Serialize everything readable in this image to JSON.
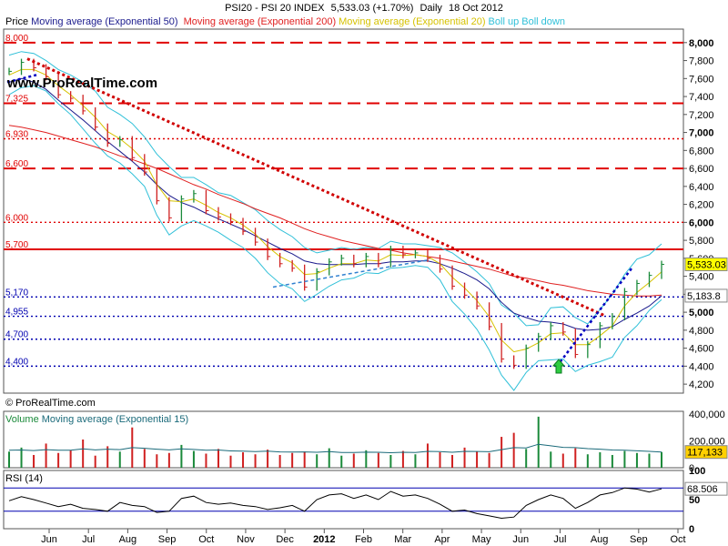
{
  "header": {
    "symbol": "PSI20 - PSI 20 INDEX",
    "quote": "5,533.03 (+1.70%)",
    "period": "Daily",
    "date": "18 Oct 2012"
  },
  "legend": {
    "price": "Price",
    "ema50": "Moving average (Exponential 50)",
    "ema200": "Moving average (Exponential 200)",
    "ema20": "Moving average (Exponential 20)",
    "boll": "Boll up Boll down"
  },
  "watermarks": {
    "main": "www.ProRealTime.com",
    "copyright": "© ProRealTime.com"
  },
  "volume_panel": {
    "label_volume": "Volume",
    "label_ma": "Moving average (Exponential 15)",
    "last_value": "117,133"
  },
  "rsi_panel": {
    "label": "RSI (14)",
    "last_value": "68.506"
  },
  "price_badges": {
    "last": "5,533.03",
    "ema": "5,183.8"
  },
  "colors": {
    "ema50": "#1a1a8c",
    "ema200": "#e02020",
    "ema20": "#d6c200",
    "boll": "#30c0d8",
    "up": "#1a8a3a",
    "down": "#d02020",
    "resistance": "#e00000",
    "support": "#0000b0"
  },
  "chart_data": [
    {
      "type": "line",
      "title": "PSI20 - PSI 20 INDEX",
      "x_ticks": [
        "Jun",
        "Jul",
        "Aug",
        "Sep",
        "Oct",
        "Nov",
        "Dec",
        "2012",
        "Feb",
        "Mar",
        "Apr",
        "May",
        "Jun",
        "Jul",
        "Aug",
        "Sep",
        "Oct"
      ],
      "y_ticks": [
        "8,000",
        "7,800",
        "7,600",
        "7,400",
        "7,200",
        "7,000",
        "6,800",
        "6,600",
        "6,400",
        "6,200",
        "6,000",
        "5,800",
        "5,600",
        "5,400",
        "5,200",
        "5,000",
        "4,800",
        "4,600",
        "4,400",
        "4,200"
      ],
      "ylim": [
        4100,
        8150
      ],
      "horizontal_lines": [
        {
          "label": "8,000",
          "value": 8000,
          "style": "dash",
          "color": "red"
        },
        {
          "label": "7,325",
          "value": 7325,
          "style": "dash",
          "color": "red"
        },
        {
          "label": "6,930",
          "value": 6930,
          "style": "dot",
          "color": "red"
        },
        {
          "label": "6,600",
          "value": 6600,
          "style": "dash",
          "color": "red"
        },
        {
          "label": "6,000",
          "value": 6000,
          "style": "dot",
          "color": "red"
        },
        {
          "label": "5,700",
          "value": 5700,
          "style": "solid",
          "color": "red"
        },
        {
          "label": "5,170",
          "value": 5170,
          "style": "dot",
          "color": "blue"
        },
        {
          "label": "4,955",
          "value": 4955,
          "style": "dot",
          "color": "blue"
        },
        {
          "label": "4,700",
          "value": 4700,
          "style": "dot",
          "color": "blue"
        },
        {
          "label": "4,400",
          "value": 4400,
          "style": "dot",
          "color": "blue"
        }
      ],
      "series": [
        {
          "values": [
            7680,
            7780,
            7720,
            7620,
            7420,
            7380,
            7240,
            7060,
            6880,
            6920,
            6720,
            6560,
            6240,
            6050,
            6260,
            6320,
            6130,
            6060,
            6010,
            5900,
            5780,
            5620,
            5540,
            5490,
            5280,
            5450,
            5560,
            5600,
            5540,
            5620,
            5540,
            5700,
            5640,
            5660,
            5600,
            5480,
            5290,
            5190,
            5070,
            4840,
            4480,
            4410,
            4600,
            4730,
            4850,
            4780,
            4530,
            4640,
            4850,
            4950,
            5230,
            5320,
            5410,
            5533
          ]
        },
        {
          "name": "Moving average (Exponential 50)",
          "values": [
            7560,
            7600,
            7560,
            7480,
            7360,
            7250,
            7140,
            7020,
            6900,
            6790,
            6680,
            6560,
            6420,
            6300,
            6220,
            6170,
            6100,
            6040,
            5980,
            5920,
            5850,
            5780,
            5710,
            5650,
            5570,
            5540,
            5530,
            5530,
            5530,
            5540,
            5540,
            5560,
            5560,
            5570,
            5570,
            5540,
            5490,
            5430,
            5360,
            5260,
            5110,
            4990,
            4940,
            4900,
            4890,
            4870,
            4820,
            4800,
            4810,
            4840,
            4920,
            4990,
            5070,
            5183.8
          ]
        },
        {
          "name": "Moving average (Exponential 200)",
          "values": [
            7080,
            7060,
            7030,
            7000,
            6960,
            6920,
            6880,
            6840,
            6790,
            6740,
            6700,
            6650,
            6600,
            6540,
            6480,
            6420,
            6370,
            6310,
            6260,
            6210,
            6150,
            6100,
            6050,
            5990,
            5930,
            5880,
            5840,
            5800,
            5770,
            5740,
            5710,
            5690,
            5660,
            5640,
            5620,
            5600,
            5570,
            5540,
            5510,
            5480,
            5440,
            5400,
            5380,
            5350,
            5320,
            5300,
            5270,
            5240,
            5220,
            5200,
            5190,
            5180,
            5180,
            5190
          ]
        },
        {
          "name": "Moving average (Exponential 20)",
          "values": [
            7640,
            7700,
            7700,
            7640,
            7520,
            7420,
            7300,
            7170,
            7010,
            6930,
            6820,
            6680,
            6420,
            6240,
            6230,
            6260,
            6190,
            6110,
            6050,
            5970,
            5870,
            5730,
            5620,
            5550,
            5420,
            5430,
            5490,
            5540,
            5540,
            5580,
            5570,
            5640,
            5630,
            5640,
            5620,
            5540,
            5390,
            5270,
            5130,
            4950,
            4690,
            4560,
            4590,
            4660,
            4760,
            4770,
            4640,
            4640,
            4740,
            4850,
            5070,
            5220,
            5330,
            5450
          ]
        },
        {
          "name": "Boll up",
          "values": [
            7860,
            7900,
            7880,
            7800,
            7700,
            7640,
            7560,
            7460,
            7280,
            7200,
            7100,
            6950,
            6760,
            6620,
            6500,
            6500,
            6420,
            6330,
            6300,
            6220,
            6140,
            6020,
            5920,
            5840,
            5720,
            5660,
            5690,
            5720,
            5700,
            5720,
            5710,
            5790,
            5760,
            5760,
            5740,
            5720,
            5660,
            5560,
            5450,
            5320,
            5080,
            4990,
            4850,
            4860,
            5050,
            5060,
            4940,
            4870,
            5030,
            5200,
            5420,
            5590,
            5640,
            5760
          ]
        },
        {
          "name": "Boll down",
          "values": [
            7420,
            7500,
            7520,
            7460,
            7320,
            7200,
            7040,
            6880,
            6740,
            6660,
            6540,
            6400,
            6080,
            5860,
            5960,
            6020,
            5960,
            5890,
            5800,
            5720,
            5600,
            5440,
            5320,
            5260,
            5120,
            5200,
            5290,
            5360,
            5380,
            5440,
            5430,
            5490,
            5500,
            5520,
            5500,
            5360,
            5120,
            4980,
            4810,
            4580,
            4300,
            4130,
            4330,
            4460,
            4470,
            4480,
            4340,
            4410,
            4450,
            4500,
            4720,
            4850,
            5020,
            5140
          ]
        }
      ]
    },
    {
      "type": "bar",
      "title": "Volume",
      "y_ticks": [
        "400,000",
        "200,000",
        "0"
      ],
      "ylim": [
        0,
        420000
      ],
      "series": [
        {
          "name": "Volume",
          "values": [
            120000,
            150000,
            95000,
            180000,
            110000,
            130000,
            210000,
            90000,
            160000,
            120000,
            300000,
            140000,
            100000,
            110000,
            170000,
            125000,
            105000,
            140000,
            90000,
            115000,
            100000,
            135000,
            95000,
            110000,
            120000,
            100000,
            145000,
            90000,
            105000,
            130000,
            110000,
            95000,
            125000,
            100000,
            180000,
            115000,
            95000,
            150000,
            120000,
            110000,
            230000,
            260000,
            140000,
            380000,
            120000,
            105000,
            145000,
            100000,
            115000,
            95000,
            125000,
            110000,
            105000,
            117133
          ]
        },
        {
          "name": "Moving average (Exponential 15)",
          "values": [
            130000,
            132000,
            128000,
            135000,
            130000,
            131000,
            140000,
            133000,
            138000,
            135000,
            150000,
            145000,
            138000,
            133000,
            140000,
            136000,
            130000,
            132000,
            125000,
            124000,
            120000,
            123000,
            118000,
            117000,
            118000,
            115000,
            120000,
            114000,
            113000,
            116000,
            115000,
            112000,
            115000,
            113000,
            122000,
            120000,
            115000,
            122000,
            121000,
            119000,
            135000,
            150000,
            148000,
            175000,
            163000,
            152000,
            150000,
            142000,
            138000,
            132000,
            130000,
            126000,
            122000,
            117133
          ]
        }
      ]
    },
    {
      "type": "line",
      "title": "RSI (14)",
      "y_ticks": [
        "100",
        "50",
        "0"
      ],
      "ylim": [
        0,
        100
      ],
      "reference_lines": [
        70,
        30
      ],
      "series": [
        {
          "name": "RSI (14)",
          "values": [
            48,
            55,
            50,
            44,
            38,
            42,
            35,
            33,
            30,
            45,
            40,
            38,
            28,
            30,
            52,
            56,
            45,
            42,
            44,
            40,
            38,
            33,
            36,
            40,
            30,
            50,
            58,
            60,
            52,
            58,
            50,
            64,
            56,
            58,
            52,
            42,
            30,
            32,
            26,
            22,
            18,
            20,
            40,
            50,
            58,
            52,
            35,
            45,
            58,
            62,
            70,
            68,
            63,
            68.506
          ]
        }
      ]
    }
  ]
}
